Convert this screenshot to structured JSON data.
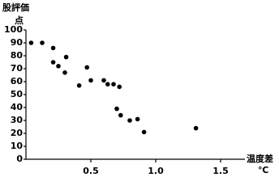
{
  "chart_data": {
    "type": "scatter",
    "title": "股評価",
    "y_label": "点",
    "x_label": "温度差",
    "x_unit": "℃",
    "x": [
      0.04,
      0.125,
      0.21,
      0.21,
      0.25,
      0.31,
      0.3,
      0.41,
      0.47,
      0.5,
      0.6,
      0.63,
      0.675,
      0.72,
      0.7,
      0.73,
      0.8,
      0.86,
      0.91,
      1.31
    ],
    "values": [
      90,
      90,
      86,
      75,
      72,
      79,
      67,
      57,
      71,
      61,
      61,
      58,
      58,
      56,
      39,
      34,
      30,
      31,
      21,
      24
    ],
    "color": "#000000",
    "xlim": [
      0,
      1.7
    ],
    "xticks": [
      0.5,
      {
        "value": 1,
        "label": "1.0"
      },
      1.5
    ],
    "ylim": [
      0,
      100
    ],
    "yticks": [
      0,
      10,
      20,
      30,
      40,
      50,
      60,
      70,
      80,
      90,
      100
    ],
    "grid": false
  }
}
